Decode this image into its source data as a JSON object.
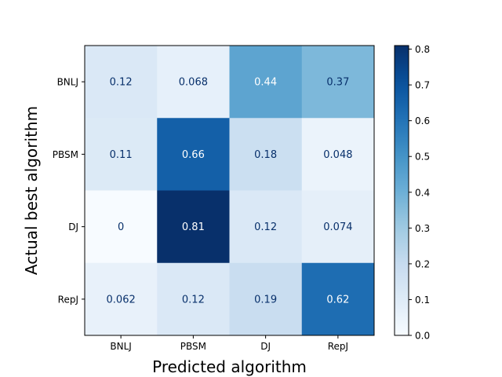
{
  "chart_data": {
    "type": "heatmap",
    "title": "",
    "xlabel": "Predicted algorithm",
    "ylabel": "Actual best algorithm",
    "x_categories": [
      "BNLJ",
      "PBSM",
      "DJ",
      "RepJ"
    ],
    "y_categories": [
      "BNLJ",
      "PBSM",
      "DJ",
      "RepJ"
    ],
    "values": [
      [
        0.12,
        0.068,
        0.44,
        0.37
      ],
      [
        0.11,
        0.66,
        0.18,
        0.048
      ],
      [
        0,
        0.81,
        0.12,
        0.074
      ],
      [
        0.062,
        0.12,
        0.19,
        0.62
      ]
    ],
    "cell_labels": [
      [
        "0.12",
        "0.068",
        "0.44",
        "0.37"
      ],
      [
        "0.11",
        "0.66",
        "0.18",
        "0.048"
      ],
      [
        "0",
        "0.81",
        "0.12",
        "0.074"
      ],
      [
        "0.062",
        "0.12",
        "0.19",
        "0.62"
      ]
    ],
    "colormap": "Blues",
    "colorbar": {
      "range": [
        0.0,
        0.81
      ],
      "ticks": [
        0.0,
        0.1,
        0.2,
        0.3,
        0.4,
        0.5,
        0.6,
        0.7,
        0.8
      ],
      "tick_labels": [
        "0.0",
        "0.1",
        "0.2",
        "0.3",
        "0.4",
        "0.5",
        "0.6",
        "0.7",
        "0.8"
      ]
    },
    "grid": false,
    "light_text_color": "#ffffff",
    "dark_text_color": "#08306b"
  }
}
